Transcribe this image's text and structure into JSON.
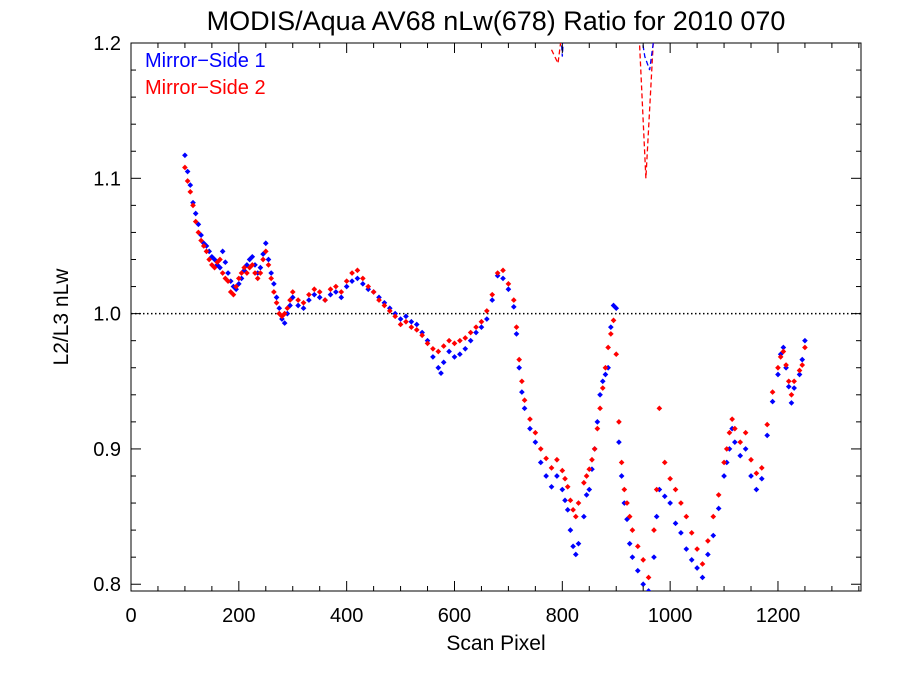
{
  "chart_data": {
    "type": "scatter",
    "title": "MODIS/Aqua AV68 nLw(678) Ratio for 2010 070",
    "xlabel": "Scan Pixel",
    "ylabel": "L2/L3 nLw",
    "xlim": [
      0,
      1354
    ],
    "ylim": [
      0.795,
      1.2
    ],
    "xticks": [
      "0",
      "200",
      "400",
      "600",
      "800",
      "1000",
      "1200"
    ],
    "yticks": [
      "0.8",
      "0.9",
      "1.0",
      "1.1",
      "1.2"
    ],
    "reference_line": 1.0,
    "legend": {
      "position": "top-left"
    },
    "series": [
      {
        "name": "Mirror−Side 1",
        "color": "#0000ff",
        "points": [
          [
            100,
            1.117
          ],
          [
            105,
            1.105
          ],
          [
            110,
            1.095
          ],
          [
            115,
            1.082
          ],
          [
            120,
            1.074
          ],
          [
            125,
            1.066
          ],
          [
            130,
            1.058
          ],
          [
            135,
            1.052
          ],
          [
            140,
            1.05
          ],
          [
            145,
            1.046
          ],
          [
            150,
            1.042
          ],
          [
            155,
            1.04
          ],
          [
            160,
            1.036
          ],
          [
            165,
            1.034
          ],
          [
            170,
            1.046
          ],
          [
            175,
            1.038
          ],
          [
            180,
            1.03
          ],
          [
            185,
            1.024
          ],
          [
            190,
            1.02
          ],
          [
            195,
            1.018
          ],
          [
            200,
            1.022
          ],
          [
            205,
            1.026
          ],
          [
            210,
            1.032
          ],
          [
            215,
            1.036
          ],
          [
            220,
            1.04
          ],
          [
            225,
            1.042
          ],
          [
            230,
            1.036
          ],
          [
            235,
            1.03
          ],
          [
            240,
            1.034
          ],
          [
            245,
            1.044
          ],
          [
            250,
            1.052
          ],
          [
            255,
            1.04
          ],
          [
            260,
            1.03
          ],
          [
            265,
            1.022
          ],
          [
            270,
            1.012
          ],
          [
            275,
            1.004
          ],
          [
            280,
            0.996
          ],
          [
            285,
            0.993
          ],
          [
            290,
            1.0
          ],
          [
            295,
            1.006
          ],
          [
            300,
            1.012
          ],
          [
            310,
            1.006
          ],
          [
            320,
            1.004
          ],
          [
            330,
            1.01
          ],
          [
            340,
            1.014
          ],
          [
            350,
            1.012
          ],
          [
            360,
            1.01
          ],
          [
            370,
            1.014
          ],
          [
            380,
            1.016
          ],
          [
            390,
            1.012
          ],
          [
            400,
            1.02
          ],
          [
            410,
            1.024
          ],
          [
            420,
            1.026
          ],
          [
            430,
            1.022
          ],
          [
            440,
            1.018
          ],
          [
            450,
            1.016
          ],
          [
            460,
            1.012
          ],
          [
            470,
            1.008
          ],
          [
            480,
            1.004
          ],
          [
            490,
            1.0
          ],
          [
            500,
            0.996
          ],
          [
            510,
            0.998
          ],
          [
            520,
            0.994
          ],
          [
            530,
            0.992
          ],
          [
            540,
            0.986
          ],
          [
            550,
            0.98
          ],
          [
            560,
            0.968
          ],
          [
            570,
            0.96
          ],
          [
            575,
            0.956
          ],
          [
            580,
            0.964
          ],
          [
            590,
            0.972
          ],
          [
            600,
            0.968
          ],
          [
            610,
            0.97
          ],
          [
            620,
            0.974
          ],
          [
            630,
            0.98
          ],
          [
            640,
            0.986
          ],
          [
            650,
            0.99
          ],
          [
            660,
            0.996
          ],
          [
            670,
            1.01
          ],
          [
            680,
            1.028
          ],
          [
            690,
            1.026
          ],
          [
            700,
            1.018
          ],
          [
            710,
            1.005
          ],
          [
            715,
            0.985
          ],
          [
            720,
            0.96
          ],
          [
            725,
            0.942
          ],
          [
            730,
            0.93
          ],
          [
            740,
            0.915
          ],
          [
            750,
            0.905
          ],
          [
            760,
            0.89
          ],
          [
            770,
            0.88
          ],
          [
            780,
            0.872
          ],
          [
            790,
            0.88
          ],
          [
            800,
            0.87
          ],
          [
            805,
            0.862
          ],
          [
            810,
            0.855
          ],
          [
            815,
            0.84
          ],
          [
            820,
            0.828
          ],
          [
            825,
            0.822
          ],
          [
            830,
            0.83
          ],
          [
            840,
            0.85
          ],
          [
            845,
            0.866
          ],
          [
            850,
            0.87
          ],
          [
            855,
            0.885
          ],
          [
            860,
            0.9
          ],
          [
            865,
            0.92
          ],
          [
            870,
            0.94
          ],
          [
            875,
            0.95
          ],
          [
            880,
            0.955
          ],
          [
            885,
            0.96
          ],
          [
            890,
            0.99
          ],
          [
            895,
            1.006
          ],
          [
            900,
            1.004
          ],
          [
            905,
            0.905
          ],
          [
            910,
            0.88
          ],
          [
            915,
            0.86
          ],
          [
            920,
            0.848
          ],
          [
            925,
            0.83
          ],
          [
            930,
            0.82
          ],
          [
            940,
            0.81
          ],
          [
            950,
            0.8
          ],
          [
            960,
            0.795
          ],
          [
            970,
            0.82
          ],
          [
            975,
            0.85
          ],
          [
            980,
            0.87
          ],
          [
            990,
            0.865
          ],
          [
            1000,
            0.86
          ],
          [
            1010,
            0.845
          ],
          [
            1020,
            0.838
          ],
          [
            1030,
            0.826
          ],
          [
            1040,
            0.818
          ],
          [
            1050,
            0.812
          ],
          [
            1060,
            0.805
          ],
          [
            1070,
            0.822
          ],
          [
            1080,
            0.836
          ],
          [
            1090,
            0.856
          ],
          [
            1100,
            0.88
          ],
          [
            1105,
            0.89
          ],
          [
            1110,
            0.9
          ],
          [
            1115,
            0.915
          ],
          [
            1120,
            0.905
          ],
          [
            1130,
            0.895
          ],
          [
            1140,
            0.9
          ],
          [
            1150,
            0.88
          ],
          [
            1160,
            0.87
          ],
          [
            1170,
            0.878
          ],
          [
            1180,
            0.91
          ],
          [
            1190,
            0.935
          ],
          [
            1200,
            0.955
          ],
          [
            1205,
            0.97
          ],
          [
            1210,
            0.975
          ],
          [
            1215,
            0.96
          ],
          [
            1220,
            0.946
          ],
          [
            1225,
            0.934
          ],
          [
            1230,
            0.945
          ],
          [
            1240,
            0.955
          ],
          [
            1245,
            0.966
          ],
          [
            1250,
            0.98
          ]
        ]
      },
      {
        "name": "Mirror−Side 2",
        "color": "#ff0000",
        "points": [
          [
            100,
            1.108
          ],
          [
            105,
            1.098
          ],
          [
            110,
            1.09
          ],
          [
            115,
            1.08
          ],
          [
            120,
            1.068
          ],
          [
            125,
            1.06
          ],
          [
            130,
            1.054
          ],
          [
            135,
            1.05
          ],
          [
            140,
            1.046
          ],
          [
            145,
            1.04
          ],
          [
            150,
            1.036
          ],
          [
            155,
            1.034
          ],
          [
            160,
            1.038
          ],
          [
            165,
            1.04
          ],
          [
            170,
            1.03
          ],
          [
            175,
            1.026
          ],
          [
            180,
            1.024
          ],
          [
            185,
            1.016
          ],
          [
            190,
            1.014
          ],
          [
            195,
            1.02
          ],
          [
            200,
            1.026
          ],
          [
            205,
            1.03
          ],
          [
            210,
            1.034
          ],
          [
            215,
            1.03
          ],
          [
            220,
            1.034
          ],
          [
            225,
            1.036
          ],
          [
            230,
            1.03
          ],
          [
            235,
            1.026
          ],
          [
            240,
            1.03
          ],
          [
            245,
            1.04
          ],
          [
            250,
            1.046
          ],
          [
            255,
            1.036
          ],
          [
            260,
            1.026
          ],
          [
            265,
            1.016
          ],
          [
            270,
            1.008
          ],
          [
            275,
            1.0
          ],
          [
            280,
            0.998
          ],
          [
            285,
            1.0
          ],
          [
            290,
            1.004
          ],
          [
            295,
            1.01
          ],
          [
            300,
            1.016
          ],
          [
            310,
            1.01
          ],
          [
            320,
            1.008
          ],
          [
            330,
            1.014
          ],
          [
            340,
            1.018
          ],
          [
            350,
            1.016
          ],
          [
            360,
            1.01
          ],
          [
            370,
            1.018
          ],
          [
            380,
            1.02
          ],
          [
            390,
            1.016
          ],
          [
            400,
            1.024
          ],
          [
            410,
            1.03
          ],
          [
            420,
            1.032
          ],
          [
            430,
            1.026
          ],
          [
            440,
            1.02
          ],
          [
            450,
            1.016
          ],
          [
            460,
            1.01
          ],
          [
            470,
            1.006
          ],
          [
            480,
            1.002
          ],
          [
            490,
            0.998
          ],
          [
            500,
            0.992
          ],
          [
            510,
            0.994
          ],
          [
            520,
            0.99
          ],
          [
            530,
            0.988
          ],
          [
            540,
            0.984
          ],
          [
            550,
            0.978
          ],
          [
            560,
            0.974
          ],
          [
            570,
            0.972
          ],
          [
            580,
            0.976
          ],
          [
            590,
            0.98
          ],
          [
            600,
            0.978
          ],
          [
            610,
            0.98
          ],
          [
            620,
            0.982
          ],
          [
            630,
            0.986
          ],
          [
            640,
            0.99
          ],
          [
            650,
            0.994
          ],
          [
            660,
            1.002
          ],
          [
            670,
            1.014
          ],
          [
            680,
            1.03
          ],
          [
            690,
            1.032
          ],
          [
            700,
            1.022
          ],
          [
            710,
            1.01
          ],
          [
            715,
            0.99
          ],
          [
            720,
            0.966
          ],
          [
            725,
            0.95
          ],
          [
            730,
            0.936
          ],
          [
            740,
            0.922
          ],
          [
            750,
            0.912
          ],
          [
            760,
            0.9
          ],
          [
            770,
            0.893
          ],
          [
            780,
            0.886
          ],
          [
            790,
            0.892
          ],
          [
            800,
            0.884
          ],
          [
            805,
            0.878
          ],
          [
            810,
            0.872
          ],
          [
            815,
            0.862
          ],
          [
            820,
            0.855
          ],
          [
            825,
            0.85
          ],
          [
            830,
            0.86
          ],
          [
            840,
            0.875
          ],
          [
            845,
            0.88
          ],
          [
            850,
            0.885
          ],
          [
            855,
            0.892
          ],
          [
            860,
            0.9
          ],
          [
            865,
            0.915
          ],
          [
            870,
            0.93
          ],
          [
            875,
            0.945
          ],
          [
            880,
            0.96
          ],
          [
            885,
            0.975
          ],
          [
            890,
            0.985
          ],
          [
            895,
            0.995
          ],
          [
            900,
            0.97
          ],
          [
            905,
            0.92
          ],
          [
            910,
            0.89
          ],
          [
            915,
            0.87
          ],
          [
            920,
            0.86
          ],
          [
            925,
            0.85
          ],
          [
            930,
            0.84
          ],
          [
            940,
            0.828
          ],
          [
            950,
            0.818
          ],
          [
            960,
            0.805
          ],
          [
            970,
            0.84
          ],
          [
            975,
            0.87
          ],
          [
            980,
            0.93
          ],
          [
            990,
            0.89
          ],
          [
            1000,
            0.878
          ],
          [
            1010,
            0.87
          ],
          [
            1020,
            0.86
          ],
          [
            1030,
            0.85
          ],
          [
            1040,
            0.838
          ],
          [
            1050,
            0.826
          ],
          [
            1060,
            0.815
          ],
          [
            1070,
            0.832
          ],
          [
            1080,
            0.85
          ],
          [
            1090,
            0.866
          ],
          [
            1100,
            0.89
          ],
          [
            1105,
            0.9
          ],
          [
            1110,
            0.912
          ],
          [
            1115,
            0.922
          ],
          [
            1120,
            0.915
          ],
          [
            1130,
            0.905
          ],
          [
            1140,
            0.912
          ],
          [
            1150,
            0.892
          ],
          [
            1160,
            0.882
          ],
          [
            1170,
            0.886
          ],
          [
            1180,
            0.918
          ],
          [
            1190,
            0.942
          ],
          [
            1200,
            0.96
          ],
          [
            1205,
            0.968
          ],
          [
            1210,
            0.972
          ],
          [
            1215,
            0.962
          ],
          [
            1220,
            0.95
          ],
          [
            1225,
            0.94
          ],
          [
            1230,
            0.95
          ],
          [
            1240,
            0.958
          ],
          [
            1245,
            0.962
          ],
          [
            1250,
            0.975
          ]
        ]
      }
    ]
  }
}
